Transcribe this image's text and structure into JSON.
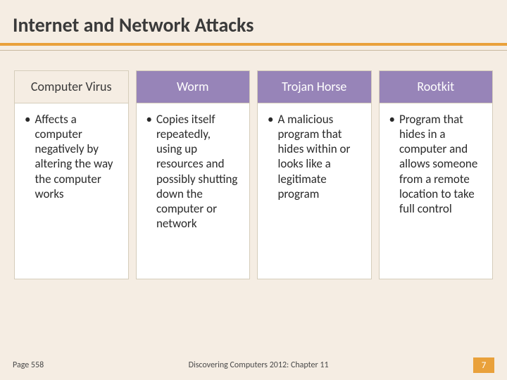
{
  "title": "Internet and Network Attacks",
  "accent_color": "#e9a13b",
  "header_bg": "#9784b8",
  "columns": [
    {
      "header": "Computer Virus",
      "text": "Affects a computer negatively by altering the way the computer works"
    },
    {
      "header": "Worm",
      "text": "Copies itself repeatedly, using up resources and possibly shutting down the computer or network"
    },
    {
      "header": "Trojan Horse",
      "text": "A malicious program that hides within or looks like a legitimate program"
    },
    {
      "header": "Rootkit",
      "text": "Program that hides in a computer and allows someone from a remote location to take full control"
    }
  ],
  "footer": {
    "page_ref": "Page 558",
    "source": "Discovering Computers 2012: Chapter 11",
    "slide_number": "7"
  }
}
